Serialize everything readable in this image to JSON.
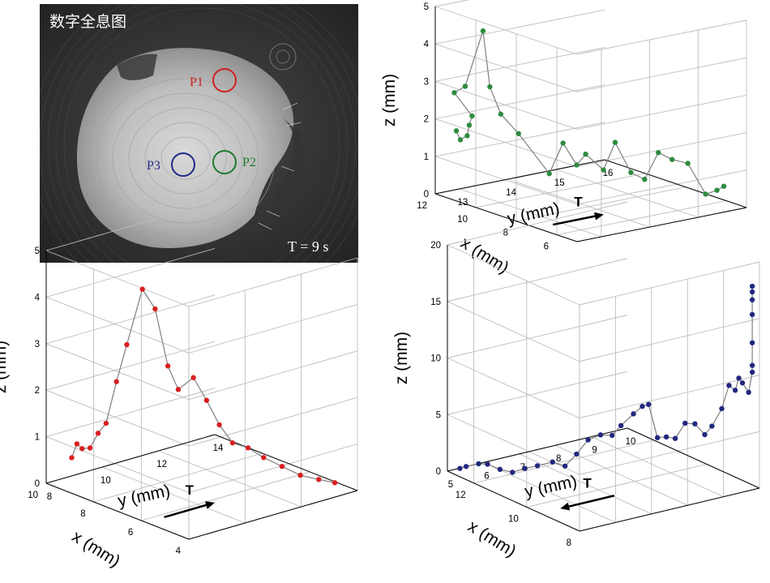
{
  "hologram": {
    "title": "数字全息图",
    "time_label": "T = 9 s",
    "points": [
      {
        "id": "P1",
        "label": "P1",
        "color": "#d11f1f"
      },
      {
        "id": "P2",
        "label": "P2",
        "color": "#1f7a2e"
      },
      {
        "id": "P3",
        "label": "P3",
        "color": "#1f2a85"
      }
    ]
  },
  "arrow_label": "T",
  "chart_data": [
    {
      "id": "p2",
      "type": "scatter3d",
      "color": "#2e8b3e",
      "xlabel": "x (mm)",
      "ylabel": "y (mm)",
      "zlabel": "z (mm)",
      "xlim": [
        5,
        12
      ],
      "ylim": [
        12.5,
        16
      ],
      "zlim": [
        0,
        5
      ],
      "xticks": [
        "6",
        "8",
        "10",
        "12"
      ],
      "yticks": [
        "13",
        "14",
        "15",
        "16"
      ],
      "zticks": [
        "0",
        "1",
        "2",
        "3",
        "4",
        "5"
      ],
      "arrow_direction": "right",
      "points": [
        [
          11.2,
          12.6,
          1.8
        ],
        [
          11.0,
          12.6,
          1.6
        ],
        [
          10.9,
          12.7,
          1.7
        ],
        [
          10.8,
          12.7,
          2.0
        ],
        [
          10.9,
          12.8,
          2.2
        ],
        [
          11.3,
          12.6,
          2.8
        ],
        [
          11.0,
          12.7,
          3.0
        ],
        [
          10.6,
          12.9,
          4.5
        ],
        [
          10.5,
          13.0,
          3.0
        ],
        [
          10.2,
          13.1,
          2.3
        ],
        [
          9.8,
          13.3,
          1.8
        ],
        [
          9.0,
          13.6,
          0.8
        ],
        [
          8.8,
          13.8,
          1.6
        ],
        [
          8.6,
          14.0,
          1.0
        ],
        [
          8.4,
          14.1,
          1.3
        ],
        [
          8.0,
          14.3,
          0.9
        ],
        [
          7.9,
          14.5,
          1.6
        ],
        [
          7.6,
          14.7,
          0.8
        ],
        [
          7.4,
          14.9,
          0.6
        ],
        [
          7.2,
          15.1,
          1.3
        ],
        [
          7.0,
          15.3,
          1.1
        ],
        [
          6.7,
          15.5,
          1.0
        ],
        [
          6.3,
          15.7,
          0.2
        ],
        [
          6.1,
          15.85,
          0.3
        ],
        [
          6.0,
          15.95,
          0.4
        ]
      ]
    },
    {
      "id": "p1",
      "type": "scatter3d",
      "color": "#d82020",
      "xlabel": "x (mm)",
      "ylabel": "y (mm)",
      "zlabel": "z (mm)",
      "xlim": [
        4,
        10
      ],
      "ylim": [
        8,
        14
      ],
      "zlim": [
        0,
        5
      ],
      "xticks": [
        "4",
        "6",
        "8",
        "10"
      ],
      "yticks": [
        "8",
        "10",
        "12",
        "14"
      ],
      "zticks": [
        "0",
        "1",
        "2",
        "3",
        "4",
        "5"
      ],
      "arrow_direction": "right",
      "points": [
        [
          9.4,
          8.4,
          0.6
        ],
        [
          9.3,
          8.5,
          0.9
        ],
        [
          9.2,
          8.6,
          0.8
        ],
        [
          9.1,
          8.8,
          0.8
        ],
        [
          9.0,
          9.0,
          1.1
        ],
        [
          8.9,
          9.2,
          1.3
        ],
        [
          8.7,
          9.4,
          2.2
        ],
        [
          8.5,
          9.6,
          3.0
        ],
        [
          8.2,
          9.9,
          4.2
        ],
        [
          7.9,
          10.1,
          3.8
        ],
        [
          7.6,
          10.3,
          2.6
        ],
        [
          7.4,
          10.5,
          2.1
        ],
        [
          7.0,
          10.7,
          2.4
        ],
        [
          6.8,
          11.0,
          1.9
        ],
        [
          6.5,
          11.2,
          1.4
        ],
        [
          6.3,
          11.5,
          1.0
        ],
        [
          6.0,
          11.8,
          0.9
        ],
        [
          5.7,
          12.1,
          0.7
        ],
        [
          5.4,
          12.5,
          0.5
        ],
        [
          5.1,
          12.9,
          0.3
        ],
        [
          4.8,
          13.3,
          0.2
        ],
        [
          4.6,
          13.7,
          0.1
        ]
      ]
    },
    {
      "id": "p3",
      "type": "scatter3d",
      "color": "#22287e",
      "xlabel": "x (mm)",
      "ylabel": "y (mm)",
      "zlabel": "z (mm)",
      "xlim": [
        8,
        13
      ],
      "ylim": [
        5,
        10
      ],
      "zlim": [
        0,
        20
      ],
      "xticks": [
        "8",
        "10",
        "12"
      ],
      "yticks": [
        "5",
        "6",
        "7",
        "8",
        "9",
        "10"
      ],
      "zticks": [
        "0",
        "5",
        "10",
        "15",
        "20"
      ],
      "arrow_direction": "left",
      "points": [
        [
          12.8,
          5.2,
          0.3
        ],
        [
          12.7,
          5.3,
          0.5
        ],
        [
          12.5,
          5.5,
          0.8
        ],
        [
          12.3,
          5.6,
          0.9
        ],
        [
          12.1,
          5.8,
          0.5
        ],
        [
          11.9,
          6.0,
          0.3
        ],
        [
          11.7,
          6.2,
          0.7
        ],
        [
          11.5,
          6.4,
          1.0
        ],
        [
          11.2,
          6.6,
          1.5
        ],
        [
          11.0,
          6.8,
          1.2
        ],
        [
          10.7,
          6.9,
          2.5
        ],
        [
          10.4,
          7.0,
          4.0
        ],
        [
          10.2,
          7.2,
          4.5
        ],
        [
          9.9,
          7.3,
          4.7
        ],
        [
          9.7,
          7.4,
          5.7
        ],
        [
          9.5,
          7.6,
          6.8
        ],
        [
          9.3,
          7.7,
          7.6
        ],
        [
          9.2,
          7.8,
          7.8
        ],
        [
          9.0,
          7.9,
          5.0
        ],
        [
          8.8,
          8.0,
          5.2
        ],
        [
          8.6,
          8.1,
          5.2
        ],
        [
          8.5,
          8.3,
          6.5
        ],
        [
          8.4,
          8.5,
          6.4
        ],
        [
          8.3,
          8.7,
          5.4
        ],
        [
          8.3,
          8.9,
          6.0
        ],
        [
          8.2,
          9.1,
          7.5
        ],
        [
          8.2,
          9.3,
          9.4
        ],
        [
          8.1,
          9.4,
          9.0
        ],
        [
          8.1,
          9.5,
          10.0
        ],
        [
          8.1,
          9.6,
          9.5
        ],
        [
          8.0,
          9.7,
          8.7
        ],
        [
          8.0,
          9.8,
          10.4
        ],
        [
          8.0,
          9.8,
          11.0
        ],
        [
          8.0,
          9.8,
          13.0
        ],
        [
          8.0,
          9.8,
          15.5
        ],
        [
          8.0,
          9.8,
          16.8
        ],
        [
          8.0,
          9.8,
          17.5
        ],
        [
          8.0,
          9.8,
          18.0
        ]
      ]
    }
  ]
}
